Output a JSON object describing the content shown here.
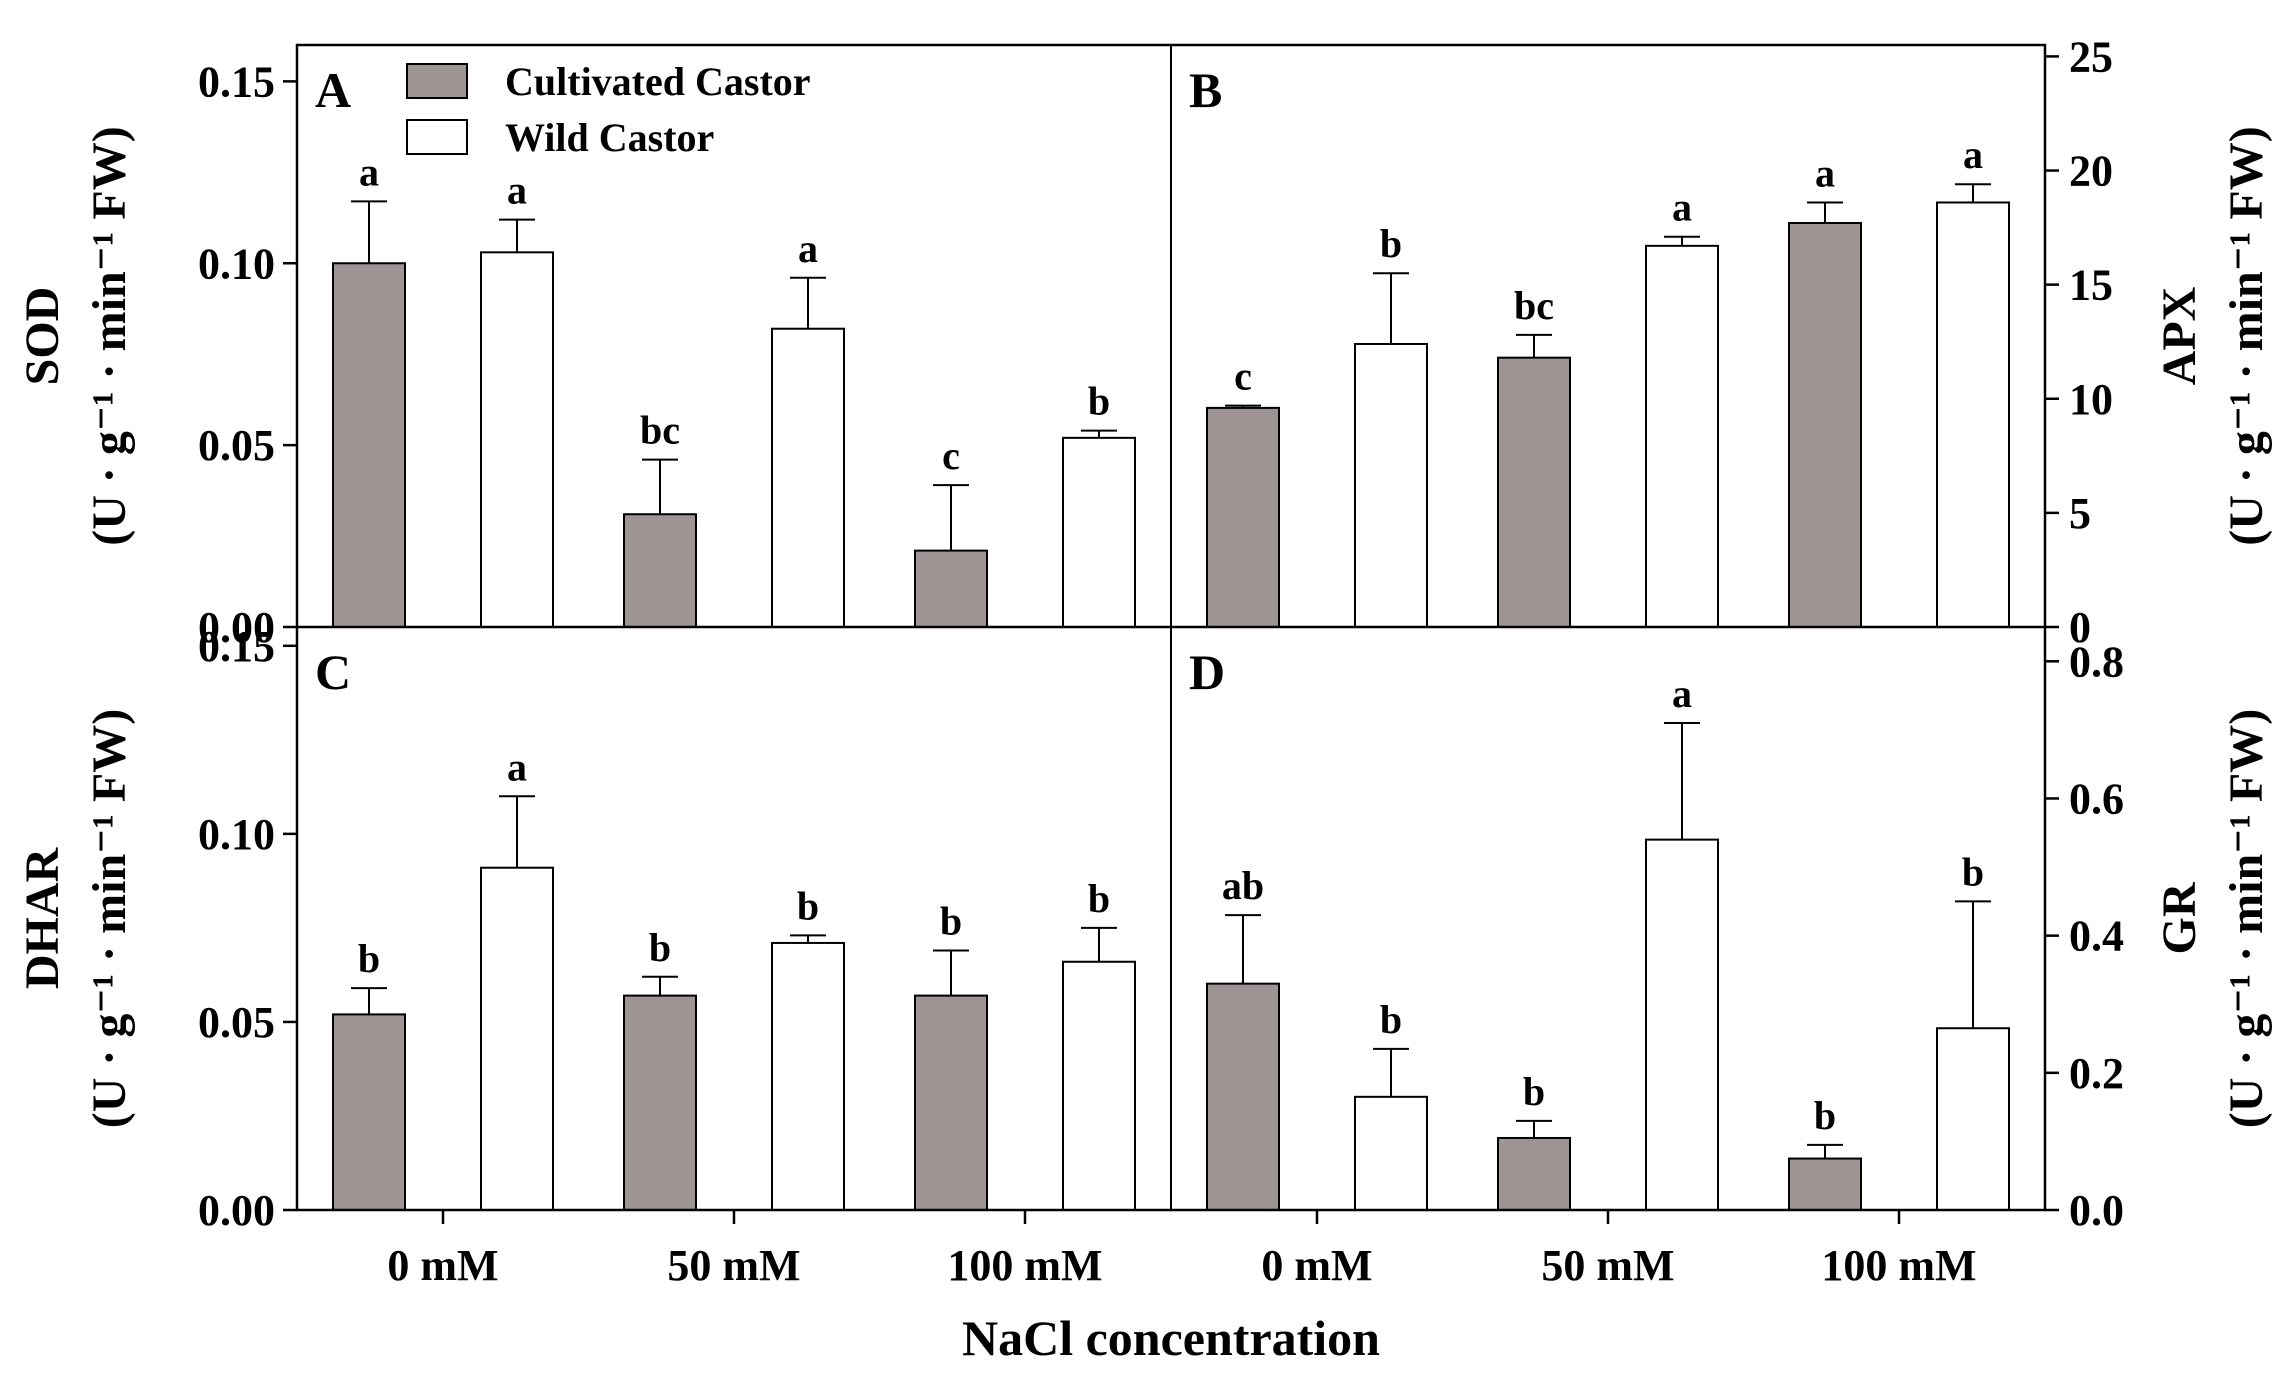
{
  "figure": {
    "xlabel": "NaCl concentration",
    "categories": [
      "0 mM",
      "50 mM",
      "100 mM"
    ],
    "legend": [
      {
        "name": "Cultivated Castor",
        "color": "#9e9494"
      },
      {
        "name": "Wild Castor",
        "color": "#ffffff"
      }
    ]
  },
  "chart_data": [
    {
      "type": "bar",
      "panel": "A",
      "metric": "SOD",
      "ylabel_unit": "(U · g⁻¹ · min⁻¹ FW)",
      "axis_side": "left",
      "categories": [
        "0 mM",
        "50 mM",
        "100 mM"
      ],
      "ylim": [
        0,
        0.16
      ],
      "yticks": [
        0.0,
        0.05,
        0.1,
        0.15
      ],
      "tick_labels": [
        "0.00",
        "0.05",
        "0.10",
        "0.15"
      ],
      "series": [
        {
          "name": "Cultivated Castor",
          "values": [
            0.1,
            0.031,
            0.021
          ],
          "errors": [
            0.017,
            0.015,
            0.018
          ],
          "sig": [
            "a",
            "bc",
            "c"
          ]
        },
        {
          "name": "Wild Castor",
          "values": [
            0.103,
            0.082,
            0.052
          ],
          "errors": [
            0.009,
            0.014,
            0.002
          ],
          "sig": [
            "a",
            "a",
            "b"
          ]
        }
      ]
    },
    {
      "type": "bar",
      "panel": "B",
      "metric": "APX",
      "ylabel_unit": "(U · g⁻¹ · min⁻¹ FW)",
      "axis_side": "right",
      "categories": [
        "0 mM",
        "50 mM",
        "100 mM"
      ],
      "ylim": [
        0,
        25.5
      ],
      "yticks": [
        0,
        5,
        10,
        15,
        20,
        25
      ],
      "tick_labels": [
        "0",
        "5",
        "10",
        "15",
        "20",
        "25"
      ],
      "series": [
        {
          "name": "Cultivated Castor",
          "values": [
            9.6,
            11.8,
            17.7
          ],
          "errors": [
            0.1,
            1.0,
            0.9
          ],
          "sig": [
            "c",
            "bc",
            "a"
          ]
        },
        {
          "name": "Wild Castor",
          "values": [
            12.4,
            16.7,
            18.6
          ],
          "errors": [
            3.1,
            0.4,
            0.8
          ],
          "sig": [
            "b",
            "a",
            "a"
          ]
        }
      ]
    },
    {
      "type": "bar",
      "panel": "C",
      "metric": "DHAR",
      "ylabel_unit": "(U · g⁻¹ · min⁻¹ FW)",
      "axis_side": "left",
      "categories": [
        "0 mM",
        "50 mM",
        "100 mM"
      ],
      "ylim": [
        0,
        0.155
      ],
      "yticks": [
        0.0,
        0.05,
        0.1,
        0.15
      ],
      "tick_labels": [
        "0.00",
        "0.05",
        "0.10",
        "0.15"
      ],
      "series": [
        {
          "name": "Cultivated Castor",
          "values": [
            0.052,
            0.057,
            0.057
          ],
          "errors": [
            0.007,
            0.005,
            0.012
          ],
          "sig": [
            "b",
            "b",
            "b"
          ]
        },
        {
          "name": "Wild Castor",
          "values": [
            0.091,
            0.071,
            0.066
          ],
          "errors": [
            0.019,
            0.002,
            0.009
          ],
          "sig": [
            "a",
            "b",
            "b"
          ]
        }
      ]
    },
    {
      "type": "bar",
      "panel": "D",
      "metric": "GR",
      "ylabel_unit": "(U · g⁻¹ · min⁻¹ FW)",
      "axis_side": "right",
      "categories": [
        "0 mM",
        "50 mM",
        "100 mM"
      ],
      "ylim": [
        0,
        0.85
      ],
      "yticks": [
        0.0,
        0.2,
        0.4,
        0.6,
        0.8
      ],
      "tick_labels": [
        "0.0",
        "0.2",
        "0.4",
        "0.6",
        "0.8"
      ],
      "series": [
        {
          "name": "Cultivated Castor",
          "values": [
            0.33,
            0.105,
            0.075
          ],
          "errors": [
            0.1,
            0.025,
            0.02
          ],
          "sig": [
            "ab",
            "b",
            "b"
          ]
        },
        {
          "name": "Wild Castor",
          "values": [
            0.165,
            0.54,
            0.265
          ],
          "errors": [
            0.07,
            0.17,
            0.185
          ],
          "sig": [
            "b",
            "a",
            "b"
          ]
        }
      ]
    }
  ]
}
